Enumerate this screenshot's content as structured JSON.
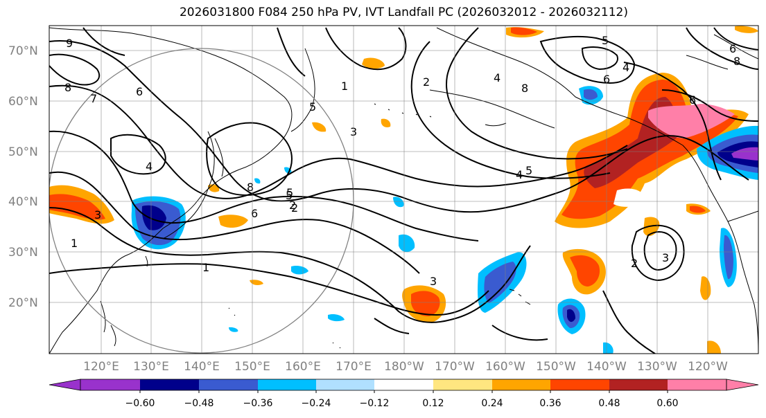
{
  "title": "2026031800 F084 250 hPa PV, IVT Landfall PC (2026032012 - 2026032112)",
  "lat_labels": [
    "70°N",
    "60°N",
    "50°N",
    "40°N",
    "30°N",
    "20°N"
  ],
  "lon_labels": [
    "120°E",
    "130°E",
    "140°E",
    "150°E",
    "160°E",
    "170°E",
    "180°W",
    "170°W",
    "160°W",
    "150°W",
    "140°W",
    "130°W",
    "120°W"
  ],
  "colorbar": {
    "ticks": [
      "−0.60",
      "−0.48",
      "−0.36",
      "−0.24",
      "−0.12",
      "0.12",
      "0.24",
      "0.36",
      "0.48",
      "0.60"
    ],
    "colors": [
      "#9932cc",
      "#00008b",
      "#3a5bd0",
      "#00bfff",
      "#b0e0ff",
      "#ffffff",
      "#ffe680",
      "#ffa500",
      "#ff4500",
      "#b22222",
      "#ff7fa8",
      "#ff7fa8"
    ]
  },
  "contour_labels": [
    "9",
    "8",
    "7",
    "6",
    "4",
    "8",
    "5",
    "2",
    "1",
    "3",
    "5",
    "6",
    "1",
    "8",
    "6",
    "5",
    "4",
    "3",
    "2",
    "1",
    "3",
    "5",
    "6",
    "4",
    "8",
    "2",
    "3",
    "4",
    "2",
    "5",
    "6"
  ],
  "colors": {
    "orange": "#ffa500",
    "red": "#ff4500",
    "darkred": "#b22222",
    "pink": "#ff7fa8",
    "lightblue": "#00bfff",
    "blue": "#3a5bd0",
    "navy": "#00008b",
    "purple": "#9932cc"
  }
}
